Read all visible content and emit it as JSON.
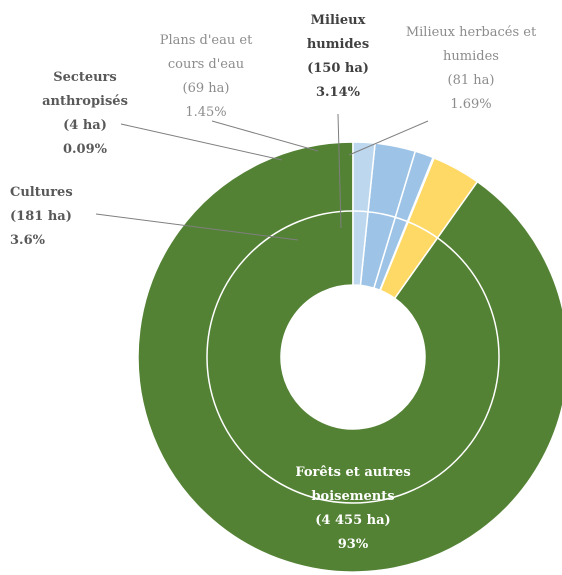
{
  "chart_data": {
    "type": "pie",
    "variant": "donut",
    "slices": [
      {
        "name": "Forêts et autres boisements",
        "area": "(4 455 ha)",
        "percent": "93%",
        "value": 4455,
        "color": "#548235",
        "label_color": "#ffffff",
        "bold": true
      },
      {
        "name": "Cultures",
        "area": "(181 ha)",
        "percent": "3.6%",
        "value": 181,
        "color": "#ffd966",
        "label_color": "#595959",
        "bold": true
      },
      {
        "name": "Secteurs anthropisés",
        "area": "(4 ha)",
        "percent": "0.09%",
        "value": 4,
        "color": "#f4b183",
        "label_color": "#595959",
        "bold": true
      },
      {
        "name": "Plans d'eau et cours d'eau",
        "area": "(69 ha)",
        "percent": "1.45%",
        "value": 69,
        "color": "#9dc3e6",
        "label_color": "#8c8c8c",
        "bold": false
      },
      {
        "name": "Milieux humides",
        "area": "(150 ha)",
        "percent": "3.14%",
        "value": 150,
        "color": "#9dc3e6",
        "label_color": "#404040",
        "bold": true
      },
      {
        "name": "Milieux herbacés et humides",
        "area": "(81 ha)",
        "percent": "1.69%",
        "value": 81,
        "color": "#bdd7ee",
        "label_color": "#8c8c8c",
        "bold": false
      }
    ],
    "labels": {
      "foret": [
        "Forêts et autres",
        "boisements",
        "(4 455 ha)",
        "93%"
      ],
      "cultures": [
        "Cultures",
        "(181 ha)",
        "3.6%"
      ],
      "secteurs": [
        "Secteurs",
        "anthropisés",
        "(4 ha)",
        "0.09%"
      ],
      "plans": [
        "Plans d'eau et",
        "cours d'eau",
        "(69 ha)",
        "1.45%"
      ],
      "milieux_humides": [
        "Milieux",
        "humides",
        "(150 ha)",
        "3.14%"
      ],
      "milieux_herbaces": [
        "Milieux herbacés et",
        "humides",
        "(81 ha)",
        "1.69%"
      ]
    }
  }
}
